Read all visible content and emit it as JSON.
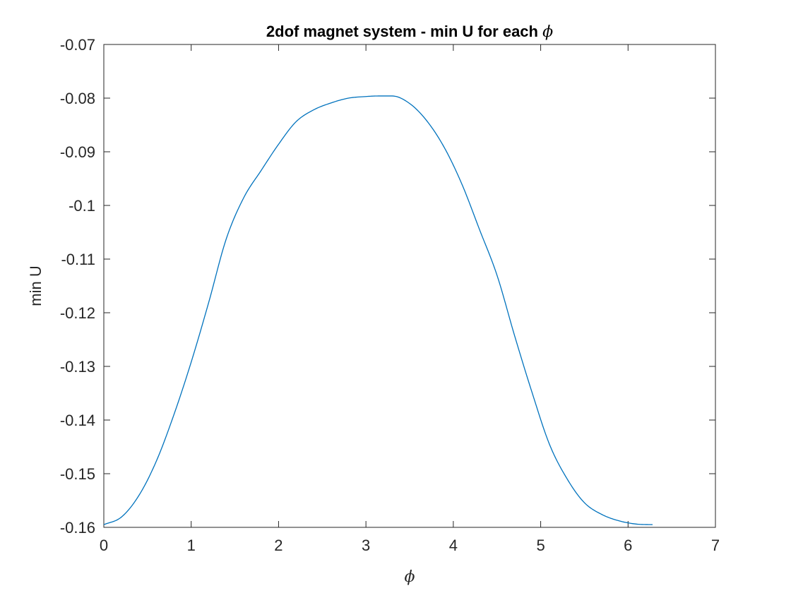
{
  "chart_data": {
    "type": "line",
    "title": "2dof magnet system - min U for each",
    "title_symbol": "ϕ",
    "xlabel": "ϕ",
    "ylabel": "min U",
    "xlim": [
      0,
      7
    ],
    "ylim": [
      -0.16,
      -0.07
    ],
    "x_ticks": [
      "0",
      "1",
      "2",
      "3",
      "4",
      "5",
      "6",
      "7"
    ],
    "y_ticks": [
      "-0.07",
      "-0.08",
      "-0.09",
      "-0.1",
      "-0.11",
      "-0.12",
      "-0.13",
      "-0.14",
      "-0.15",
      "-0.16"
    ],
    "grid": false,
    "series": [
      {
        "color": "#0072BD",
        "x": [
          0.0,
          0.2,
          0.4,
          0.6,
          0.8,
          1.0,
          1.2,
          1.4,
          1.6,
          1.8,
          2.0,
          2.2,
          2.4,
          2.6,
          2.8,
          3.0,
          3.14,
          3.3,
          3.5,
          3.7,
          3.9,
          4.1,
          4.3,
          4.5,
          4.7,
          4.9,
          5.1,
          5.3,
          5.5,
          5.7,
          5.9,
          6.1,
          6.28
        ],
        "y": [
          -0.1595,
          -0.1581,
          -0.1541,
          -0.1477,
          -0.1391,
          -0.1292,
          -0.1181,
          -0.1063,
          -0.0986,
          -0.0935,
          -0.0886,
          -0.0844,
          -0.0822,
          -0.0809,
          -0.08,
          -0.0797,
          -0.0796,
          -0.0796,
          -0.081,
          -0.0843,
          -0.0893,
          -0.0961,
          -0.1045,
          -0.113,
          -0.1242,
          -0.1348,
          -0.1445,
          -0.1509,
          -0.1554,
          -0.1576,
          -0.1588,
          -0.1594,
          -0.1595
        ]
      }
    ]
  }
}
